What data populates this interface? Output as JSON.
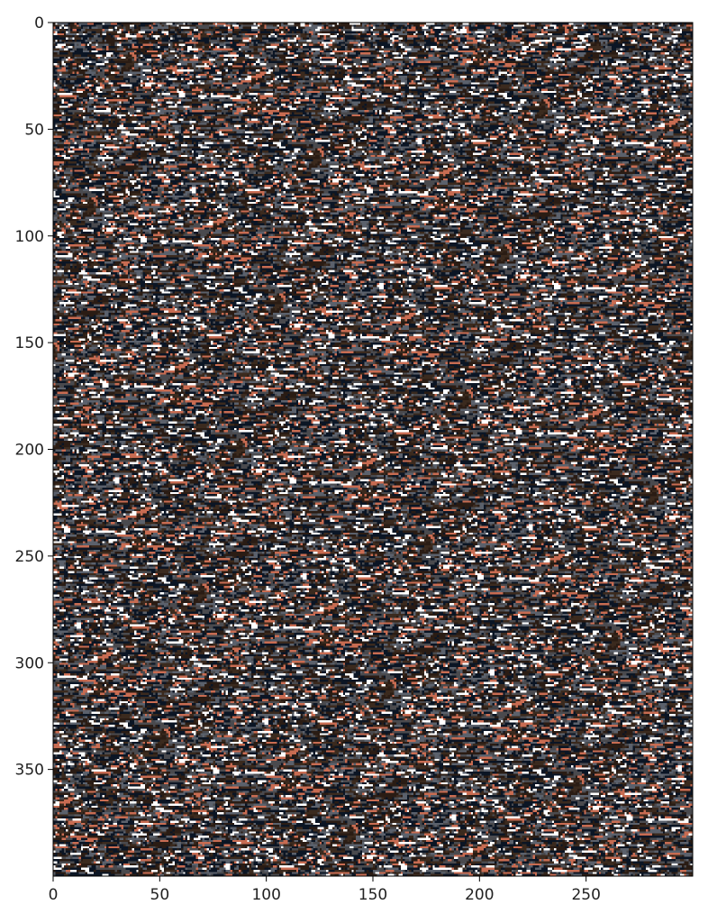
{
  "chart_data": {
    "type": "heatmap",
    "title": "",
    "xlabel": "",
    "ylabel": "",
    "image_shape": [
      400,
      300
    ],
    "xlim": [
      0,
      300
    ],
    "ylim": [
      400,
      0
    ],
    "x_ticks": [
      0,
      50,
      100,
      150,
      200,
      250
    ],
    "y_ticks": [
      0,
      50,
      100,
      150,
      200,
      250,
      300,
      350
    ],
    "x_tick_labels": [
      "0",
      "50",
      "100",
      "150",
      "200",
      "250"
    ],
    "y_tick_labels": [
      "0",
      "50",
      "100",
      "150",
      "200",
      "250",
      "300",
      "350"
    ],
    "grid": false,
    "legend": "none",
    "palette": [
      "#0b1524",
      "#2a1c14",
      "#3b2a1e",
      "#4a4a4e",
      "#5b616c",
      "#c86c52",
      "#ffffff"
    ],
    "palette_weights": [
      0.22,
      0.18,
      0.12,
      0.15,
      0.13,
      0.1,
      0.1
    ]
  }
}
